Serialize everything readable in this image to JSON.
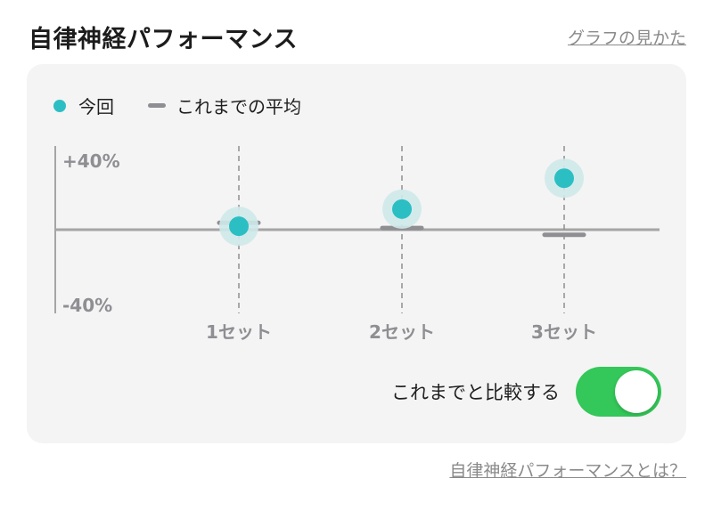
{
  "header": {
    "title": "自律神経パフォーマンス",
    "how_to_read_link": "グラフの見かた"
  },
  "legend": {
    "current_label": "今回",
    "average_label": "これまでの平均"
  },
  "colors": {
    "current": "#2bbfc4",
    "current_halo": "#cfe9ea",
    "average": "#8e8e93",
    "axis": "#a5a5a5",
    "toggle_on": "#34c759",
    "card_bg": "#f4f4f4",
    "muted_text": "#8a8a8a"
  },
  "chart_data": {
    "type": "scatter",
    "categories": [
      "1セット",
      "2セット",
      "3セット"
    ],
    "series": [
      {
        "name": "今回",
        "values": [
          2,
          12,
          30
        ]
      },
      {
        "name": "これまでの平均",
        "values": [
          4,
          1,
          -3
        ]
      }
    ],
    "ylim": [
      -40,
      40
    ],
    "y_tick_labels": [
      "+40%",
      "-40%"
    ],
    "unit": "%",
    "grid": false,
    "legend_position": "top-left"
  },
  "compare_toggle": {
    "label": "これまでと比較する",
    "on": true
  },
  "footer": {
    "about_link": "自律神経パフォーマンスとは？"
  }
}
